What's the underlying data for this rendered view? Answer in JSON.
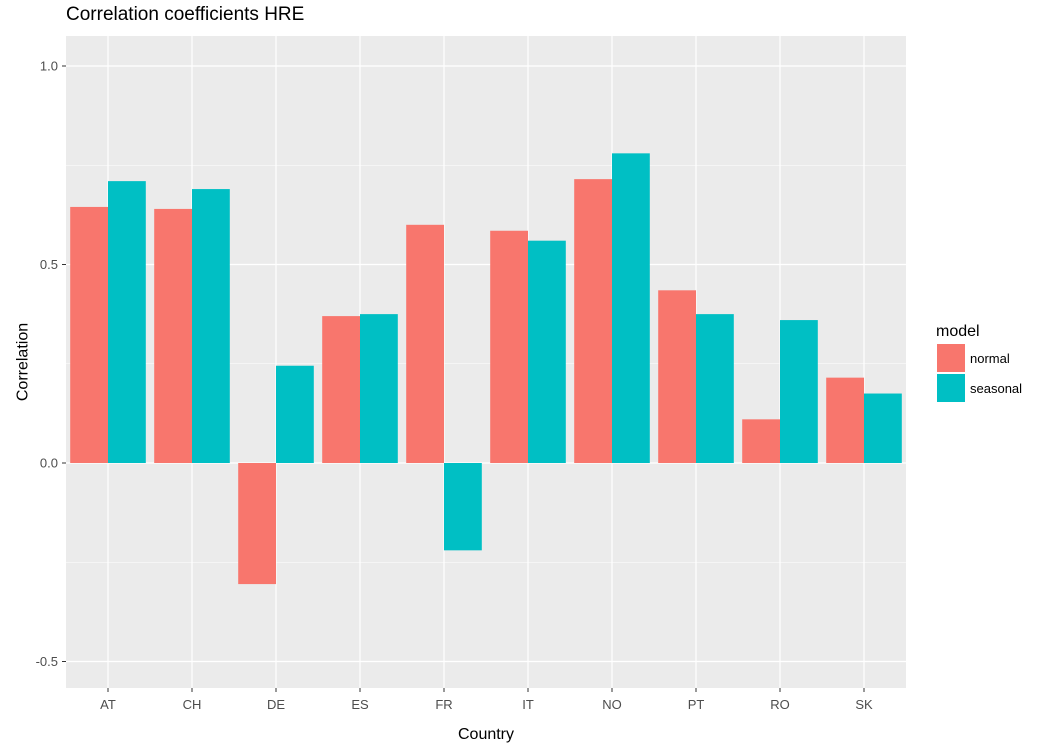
{
  "chart_data": {
    "type": "bar",
    "title": "Correlation coefficients HRE",
    "xlabel": "Country",
    "ylabel": "Correlation",
    "categories": [
      "AT",
      "CH",
      "DE",
      "ES",
      "FR",
      "IT",
      "NO",
      "PT",
      "RO",
      "SK"
    ],
    "series": [
      {
        "name": "normal",
        "color": "#F8766D",
        "values": [
          0.645,
          0.64,
          -0.305,
          0.37,
          0.6,
          0.585,
          0.715,
          0.435,
          0.11,
          0.215
        ]
      },
      {
        "name": "seasonal",
        "color": "#00BFC4",
        "values": [
          0.71,
          0.69,
          0.245,
          0.375,
          -0.22,
          0.56,
          0.78,
          0.375,
          0.36,
          0.175
        ]
      }
    ],
    "ylim": [
      -0.57,
      1.07
    ],
    "yticks": [
      -0.5,
      0.0,
      0.5,
      1.0
    ],
    "ytick_labels": [
      "-0.5",
      "0.0",
      "0.5",
      "1.0"
    ],
    "grid": true,
    "legend": {
      "title": "model",
      "position": "right"
    },
    "panel_background": "#EBEBEB",
    "grid_color": "#FFFFFF"
  }
}
